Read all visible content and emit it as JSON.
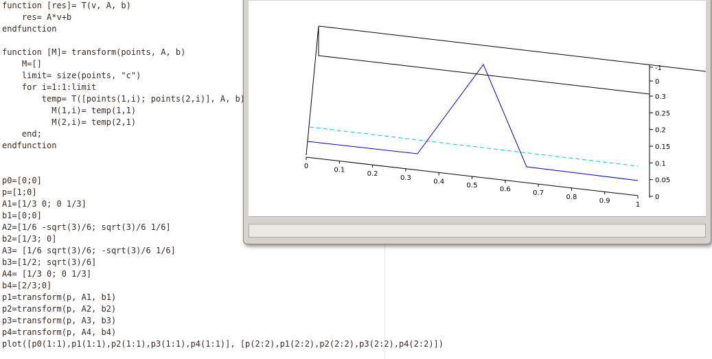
{
  "editor": {
    "blocks": [
      [
        "function [res]= T(v, A, b)",
        "    res= A*v+b",
        "endfunction"
      ],
      [
        "function [M]= transform(points, A, b)",
        "    M=[]",
        "    limit= size(points, \"c\")",
        "    for i=1:1:limit",
        "        temp= T([points(1,i); points(2,i)], A, b)",
        "          M(1,i)= temp(1,1)",
        "          M(2,i)= temp(2,1)",
        "    end;",
        "endfunction"
      ],
      [
        "p0=[0;0]",
        "p=[1;0]",
        "A1=[1/3 0; 0 1/3]",
        "b1=[0;0]",
        "A2=[1/6 -sqrt(3)/6; sqrt(3)/6 1/6]",
        "b2=[1/3; 0]",
        "A3= [1/6 sqrt(3)/6; -sqrt(3)/6 1/6]",
        "b3=[1/2; sqrt(3)/6]",
        "A4= [1/3 0; 0 1/3]",
        "b4=[2/3;0]",
        "p1=transform(p, A1, b1)",
        "p2=transform(p, A2, b2)",
        "p3=transform(p, A3, b3)",
        "p4=transform(p, A4, b4)",
        "plot([p0(1:1),p1(1:1),p2(1:1),p3(1:1),p4(1:1)], [p(2:2),p1(2:2),p2(2:2),p3(2:2),p4(2:2)])"
      ]
    ]
  },
  "plot": {
    "x_ticks": [
      "0",
      "0.1",
      "0.2",
      "0.3",
      "0.4",
      "0.5",
      "0.6",
      "0.7",
      "0.8",
      "0.9",
      "1"
    ],
    "y_ticks": [
      "0",
      "0.05",
      "0.1",
      "0.15",
      "0.2",
      "0.25",
      "0.3"
    ],
    "z_ticks": [
      "-1",
      "0"
    ]
  }
}
